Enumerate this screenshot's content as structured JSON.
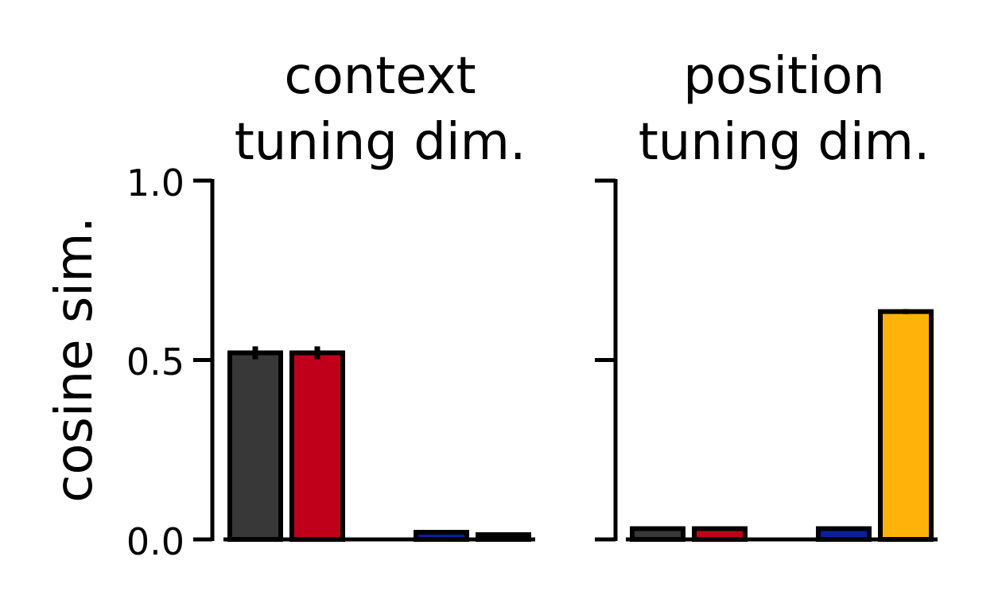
{
  "chart_data": {
    "type": "bar",
    "ylabel": "cosine sim.",
    "ylim": [
      0,
      1.0
    ],
    "yticks": [
      "0.0",
      "0.5",
      "1.0"
    ],
    "grid": false,
    "bar_colors": [
      "#383838",
      "#c0001a",
      "#ffffff",
      "#0a1f9c",
      "#ffb20a"
    ],
    "edge_color": "#000000",
    "panels": [
      {
        "title_lines": [
          "context",
          "tuning dim."
        ],
        "values": [
          0.52,
          0.52,
          0.0,
          0.02,
          0.008
        ],
        "errors": [
          0.018,
          0.018,
          0.0,
          0.004,
          0.002
        ]
      },
      {
        "title_lines": [
          "position",
          "tuning dim."
        ],
        "values": [
          0.03,
          0.03,
          0.0,
          0.03,
          0.635
        ],
        "errors": [
          0.004,
          0.004,
          0.0,
          0.005,
          0.007
        ]
      }
    ]
  }
}
